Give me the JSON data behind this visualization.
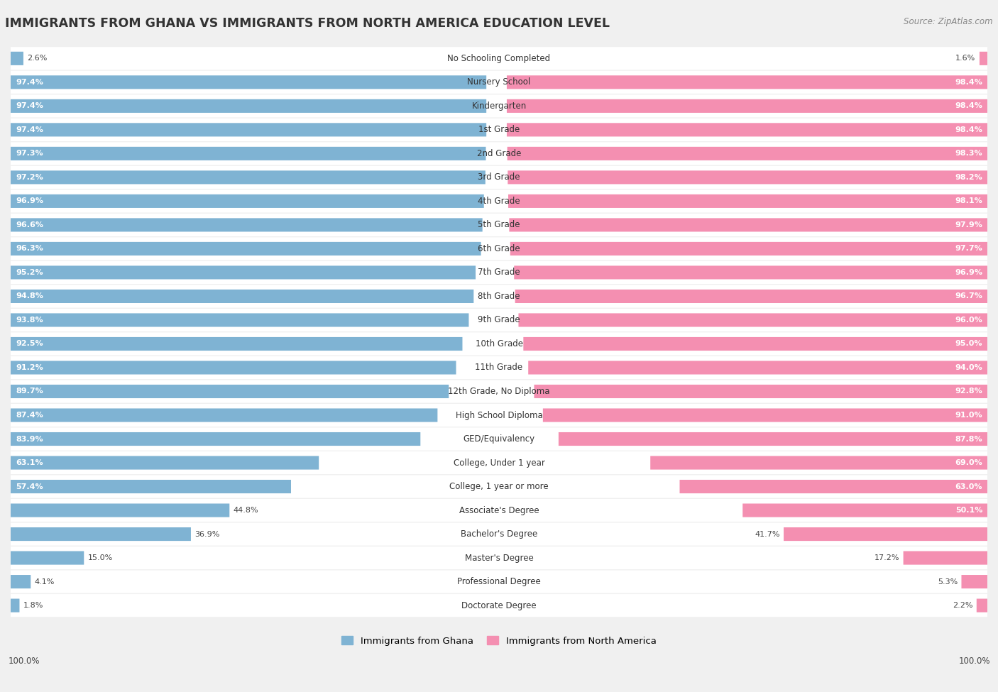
{
  "title": "IMMIGRANTS FROM GHANA VS IMMIGRANTS FROM NORTH AMERICA EDUCATION LEVEL",
  "source": "Source: ZipAtlas.com",
  "categories": [
    "No Schooling Completed",
    "Nursery School",
    "Kindergarten",
    "1st Grade",
    "2nd Grade",
    "3rd Grade",
    "4th Grade",
    "5th Grade",
    "6th Grade",
    "7th Grade",
    "8th Grade",
    "9th Grade",
    "10th Grade",
    "11th Grade",
    "12th Grade, No Diploma",
    "High School Diploma",
    "GED/Equivalency",
    "College, Under 1 year",
    "College, 1 year or more",
    "Associate's Degree",
    "Bachelor's Degree",
    "Master's Degree",
    "Professional Degree",
    "Doctorate Degree"
  ],
  "ghana_values": [
    2.6,
    97.4,
    97.4,
    97.4,
    97.3,
    97.2,
    96.9,
    96.6,
    96.3,
    95.2,
    94.8,
    93.8,
    92.5,
    91.2,
    89.7,
    87.4,
    83.9,
    63.1,
    57.4,
    44.8,
    36.9,
    15.0,
    4.1,
    1.8
  ],
  "north_america_values": [
    1.6,
    98.4,
    98.4,
    98.4,
    98.3,
    98.2,
    98.1,
    97.9,
    97.7,
    96.9,
    96.7,
    96.0,
    95.0,
    94.0,
    92.8,
    91.0,
    87.8,
    69.0,
    63.0,
    50.1,
    41.7,
    17.2,
    5.3,
    2.2
  ],
  "ghana_color": "#7fb3d3",
  "north_america_color": "#f48fb1",
  "background_color": "#f0f0f0",
  "bar_background": "#ffffff",
  "legend_ghana": "Immigrants from Ghana",
  "legend_north_america": "Immigrants from North America"
}
